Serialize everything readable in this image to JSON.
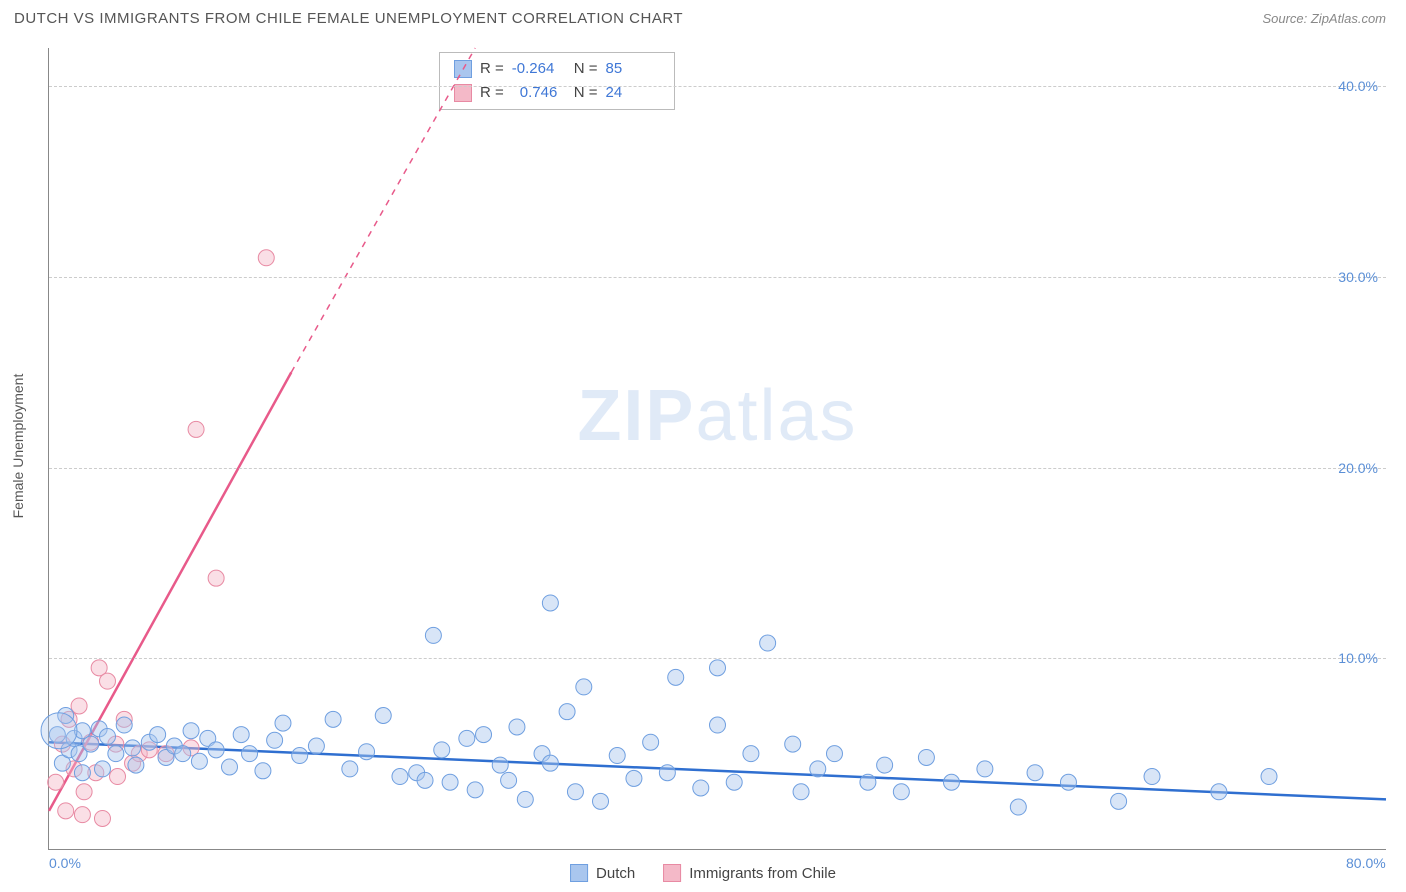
{
  "title": "DUTCH VS IMMIGRANTS FROM CHILE FEMALE UNEMPLOYMENT CORRELATION CHART",
  "source": "Source: ZipAtlas.com",
  "ylabel": "Female Unemployment",
  "watermark_a": "ZIP",
  "watermark_b": "atlas",
  "chart": {
    "type": "scatter",
    "xlim": [
      0,
      80
    ],
    "ylim": [
      0,
      42
    ],
    "xticks": [
      {
        "v": 0,
        "label": "0.0%"
      },
      {
        "v": 80,
        "label": "80.0%"
      }
    ],
    "yticks": [
      {
        "v": 10,
        "label": "10.0%"
      },
      {
        "v": 20,
        "label": "20.0%"
      },
      {
        "v": 30,
        "label": "30.0%"
      },
      {
        "v": 40,
        "label": "40.0%"
      }
    ],
    "grid_color": "#cccccc",
    "axis_color": "#888888",
    "background": "#ffffff",
    "marker_radius": 8,
    "marker_opacity": 0.45,
    "line_width": 2.5
  },
  "series": {
    "dutch": {
      "label": "Dutch",
      "fill": "#a9c6ee",
      "stroke": "#6f9fe0",
      "line_color": "#2f6fd0",
      "R": "-0.264",
      "N": "85",
      "trend": {
        "x1": 0,
        "y1": 5.6,
        "x2": 80,
        "y2": 2.6
      },
      "points": [
        [
          0.5,
          6.0
        ],
        [
          0.8,
          4.5
        ],
        [
          1.0,
          7.0
        ],
        [
          1.2,
          5.2
        ],
        [
          1.5,
          5.8
        ],
        [
          1.8,
          5.0
        ],
        [
          2.0,
          6.2
        ],
        [
          2.0,
          4.0
        ],
        [
          2.5,
          5.5
        ],
        [
          3.0,
          6.3
        ],
        [
          3.2,
          4.2
        ],
        [
          3.5,
          5.9
        ],
        [
          4.0,
          5.0
        ],
        [
          4.5,
          6.5
        ],
        [
          5.0,
          5.3
        ],
        [
          5.2,
          4.4
        ],
        [
          6.0,
          5.6
        ],
        [
          6.5,
          6.0
        ],
        [
          7.0,
          4.8
        ],
        [
          7.5,
          5.4
        ],
        [
          8.0,
          5.0
        ],
        [
          8.5,
          6.2
        ],
        [
          9.0,
          4.6
        ],
        [
          9.5,
          5.8
        ],
        [
          10.0,
          5.2
        ],
        [
          10.8,
          4.3
        ],
        [
          11.5,
          6.0
        ],
        [
          12.0,
          5.0
        ],
        [
          12.8,
          4.1
        ],
        [
          13.5,
          5.7
        ],
        [
          14.0,
          6.6
        ],
        [
          15.0,
          4.9
        ],
        [
          16.0,
          5.4
        ],
        [
          17.0,
          6.8
        ],
        [
          18.0,
          4.2
        ],
        [
          19.0,
          5.1
        ],
        [
          20.0,
          7.0
        ],
        [
          21.0,
          3.8
        ],
        [
          22.0,
          4.0
        ],
        [
          22.5,
          3.6
        ],
        [
          23.5,
          5.2
        ],
        [
          23.0,
          11.2
        ],
        [
          24.0,
          3.5
        ],
        [
          25.0,
          5.8
        ],
        [
          25.5,
          3.1
        ],
        [
          26.0,
          6.0
        ],
        [
          27.0,
          4.4
        ],
        [
          27.5,
          3.6
        ],
        [
          28.0,
          6.4
        ],
        [
          28.5,
          2.6
        ],
        [
          29.5,
          5.0
        ],
        [
          30.0,
          12.9
        ],
        [
          30.0,
          4.5
        ],
        [
          31.0,
          7.2
        ],
        [
          31.5,
          3.0
        ],
        [
          32.0,
          8.5
        ],
        [
          33.0,
          2.5
        ],
        [
          34.0,
          4.9
        ],
        [
          35.0,
          3.7
        ],
        [
          36.0,
          5.6
        ],
        [
          37.0,
          4.0
        ],
        [
          37.5,
          9.0
        ],
        [
          39.0,
          3.2
        ],
        [
          40.0,
          6.5
        ],
        [
          40.0,
          9.5
        ],
        [
          41.0,
          3.5
        ],
        [
          42.0,
          5.0
        ],
        [
          43.0,
          10.8
        ],
        [
          44.5,
          5.5
        ],
        [
          45.0,
          3.0
        ],
        [
          46.0,
          4.2
        ],
        [
          47.0,
          5.0
        ],
        [
          49.0,
          3.5
        ],
        [
          50.0,
          4.4
        ],
        [
          51.0,
          3.0
        ],
        [
          52.5,
          4.8
        ],
        [
          54.0,
          3.5
        ],
        [
          56.0,
          4.2
        ],
        [
          58.0,
          2.2
        ],
        [
          59.0,
          4.0
        ],
        [
          61.0,
          3.5
        ],
        [
          64.0,
          2.5
        ],
        [
          66.0,
          3.8
        ],
        [
          70.0,
          3.0
        ],
        [
          73.0,
          3.8
        ]
      ]
    },
    "chile": {
      "label": "Immigrants from Chile",
      "fill": "#f4b9c8",
      "stroke": "#e88aa3",
      "line_color": "#e85a8a",
      "R": "0.746",
      "N": "24",
      "trend_solid": {
        "x1": 0,
        "y1": 2.0,
        "x2": 14.5,
        "y2": 25.0
      },
      "trend_dashed": {
        "x1": 14.5,
        "y1": 25.0,
        "x2": 25.5,
        "y2": 42.0
      },
      "points": [
        [
          0.4,
          3.5
        ],
        [
          0.8,
          5.5
        ],
        [
          1.0,
          2.0
        ],
        [
          1.2,
          6.8
        ],
        [
          1.5,
          4.2
        ],
        [
          1.8,
          7.5
        ],
        [
          2.0,
          1.8
        ],
        [
          2.1,
          3.0
        ],
        [
          2.5,
          5.6
        ],
        [
          2.8,
          4.0
        ],
        [
          3.0,
          9.5
        ],
        [
          3.2,
          1.6
        ],
        [
          3.5,
          8.8
        ],
        [
          4.0,
          5.5
        ],
        [
          4.1,
          3.8
        ],
        [
          4.5,
          6.8
        ],
        [
          5.0,
          4.5
        ],
        [
          5.4,
          5.0
        ],
        [
          6.0,
          5.2
        ],
        [
          7.0,
          5.0
        ],
        [
          8.5,
          5.3
        ],
        [
          8.8,
          22.0
        ],
        [
          10.0,
          14.2
        ],
        [
          13.0,
          31.0
        ]
      ]
    }
  },
  "legend": {
    "r_label": "R =",
    "n_label": "N ="
  }
}
